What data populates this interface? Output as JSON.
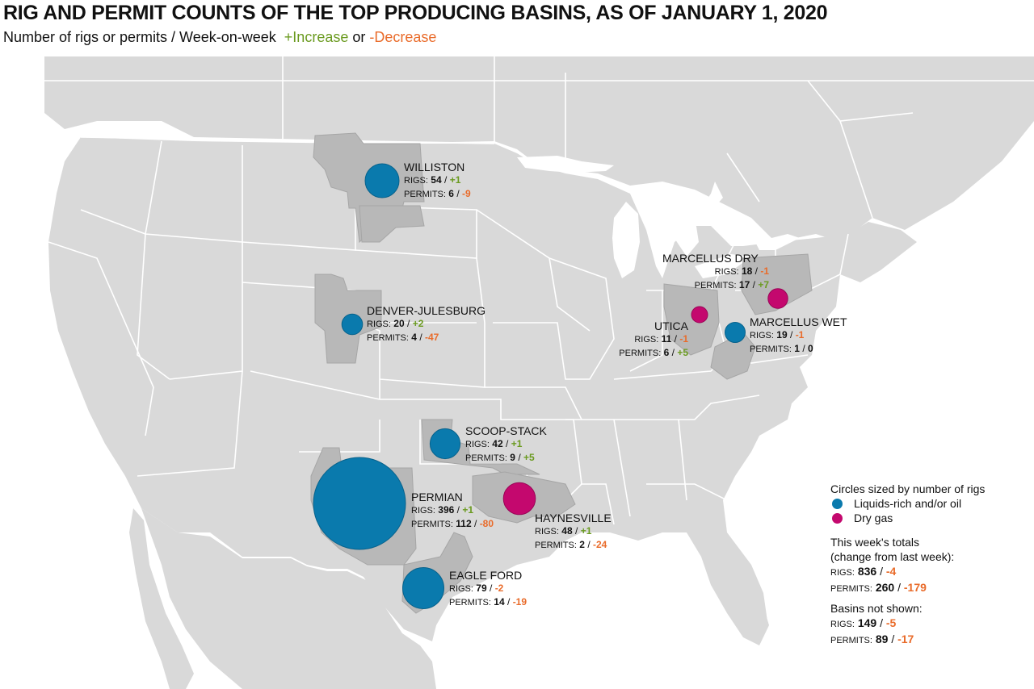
{
  "title": "RIG AND PERMIT COUNTS OF THE TOP PRODUCING BASINS, AS OF JANUARY 1, 2020",
  "subtitle": {
    "prefix": "Number of rigs or permits / Week-on-week",
    "increase": "+Increase",
    "or": "or",
    "decrease": "-Decrease"
  },
  "colors": {
    "liquids": "#0a7aad",
    "dry_gas": "#c4086e",
    "increase": "#6a9a1f",
    "decrease": "#e96b2a",
    "land": "#d9d9d9",
    "basin_area": "#b8b8b8",
    "water": "#ffffff"
  },
  "labels": {
    "rigs": "RIGS:",
    "permits": "PERMITS:",
    "slash": "/"
  },
  "basins": {
    "williston": {
      "name": "WILLISTON",
      "type": "liquids",
      "rigs": "54",
      "rigs_change": "+1",
      "permits": "6",
      "permits_change": "-9"
    },
    "denver": {
      "name": "DENVER-JULESBURG",
      "type": "liquids",
      "rigs": "20",
      "rigs_change": "+2",
      "permits": "4",
      "permits_change": "-47"
    },
    "scoop": {
      "name": "SCOOP-STACK",
      "type": "liquids",
      "rigs": "42",
      "rigs_change": "+1",
      "permits": "9",
      "permits_change": "+5"
    },
    "permian": {
      "name": "PERMIAN",
      "type": "liquids",
      "rigs": "396",
      "rigs_change": "+1",
      "permits": "112",
      "permits_change": "-80"
    },
    "haynesville": {
      "name": "HAYNESVILLE",
      "type": "dry_gas",
      "rigs": "48",
      "rigs_change": "+1",
      "permits": "2",
      "permits_change": "-24"
    },
    "eagle": {
      "name": "EAGLE FORD",
      "type": "liquids",
      "rigs": "79",
      "rigs_change": "-2",
      "permits": "14",
      "permits_change": "-19"
    },
    "marcellus_dry": {
      "name": "MARCELLUS DRY",
      "type": "dry_gas",
      "rigs": "18",
      "rigs_change": "-1",
      "permits": "17",
      "permits_change": "+7"
    },
    "utica": {
      "name": "UTICA",
      "type": "dry_gas",
      "rigs": "11",
      "rigs_change": "-1",
      "permits": "6",
      "permits_change": "+5"
    },
    "marcellus_wet": {
      "name": "MARCELLUS WET",
      "type": "liquids",
      "rigs": "19",
      "rigs_change": "-1",
      "permits": "1",
      "permits_change": "0"
    }
  },
  "legend": {
    "heading": "Circles sized by number of rigs",
    "liquids": "Liquids-rich and/or oil",
    "dry_gas": "Dry gas",
    "totals_heading_1": "This week's totals",
    "totals_heading_2": "(change from last week):",
    "total_rigs": "836",
    "total_rigs_change": "-4",
    "total_permits": "260",
    "total_permits_change": "-179",
    "not_shown_heading": "Basins not shown:",
    "ns_rigs": "149",
    "ns_rigs_change": "-5",
    "ns_permits": "89",
    "ns_permits_change": "-17"
  }
}
